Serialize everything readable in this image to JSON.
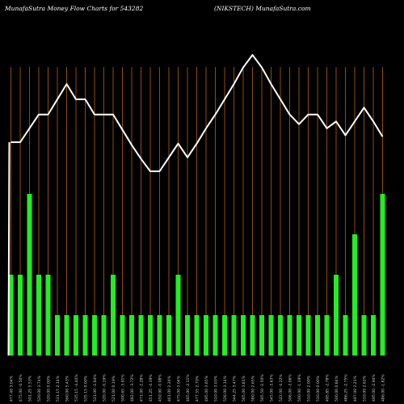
{
  "header": {
    "left": "MunafaSutra  Money Flow  Charts for 543282",
    "right": "(NIKSTECH) MunafaSutra.com"
  },
  "colors": {
    "background": "#000000",
    "gridline": "#b8600c",
    "bar": "#22ee22",
    "line": "#ffffff",
    "label": "#cccccc"
  },
  "chart_data": {
    "type": "bar",
    "title": "",
    "xlabel": "",
    "ylabel": "",
    "grid": true,
    "categories": [
      "477.40 3.04%",
      "475.00 -0.50%",
      "501.25 5.53%",
      "520.00 3.74%",
      "520.00 0.00%",
      "531.15 2.14%",
      "560.00 5.43%",
      "535.15 -4.44%",
      "535.15 0.00%",
      "521.00 -2.64%",
      "520.00 -0.19%",
      "521.00 0.19%",
      "500.65 -3.91%",
      "482.00 -3.72%",
      "471.00 -2.28%",
      "451.25 -4.19%",
      "450.90 -0.08%",
      "461.00 2.24%",
      "475.00 3.04%",
      "465.00 -2.11%",
      "477.55 2.70%",
      "495.00 3.65%",
      "510.00 3.03%",
      "526.00 3.14%",
      "544.25 3.47%",
      "565.00 3.81%",
      "580.00 2.65%",
      "565.50 -2.50%",
      "545.00 -3.63%",
      "522.00 -4.22%",
      "506.00 -3.06%",
      "500.00 -1.19%",
      "510.00 2.00%",
      "510.00 0.00%",
      "495.85 -2.78%",
      "500.00 0.84%",
      "486.25 -2.75%",
      "497.00 2.21%",
      "510.00 2.62%",
      "495.00 -2.94%",
      "486.00 -1.82%"
    ],
    "series": [
      {
        "type": "bar",
        "values": [
          2,
          2,
          4,
          2,
          2,
          1,
          1,
          1,
          1,
          1,
          1,
          2,
          1,
          1,
          1,
          1,
          1,
          1,
          2,
          1,
          1,
          1,
          1,
          1,
          1,
          1,
          1,
          1,
          1,
          1,
          1,
          1,
          1,
          1,
          1,
          2,
          1,
          3,
          1,
          1,
          4
        ]
      },
      {
        "type": "line",
        "values": [
          477,
          477,
          487,
          497,
          497,
          508,
          519,
          508,
          508,
          497,
          497,
          497,
          486,
          475,
          465,
          456,
          456,
          466,
          476,
          466,
          476,
          487,
          497,
          508,
          519,
          531,
          540,
          531,
          519,
          508,
          497,
          490,
          497,
          497,
          487,
          492,
          482,
          492,
          502,
          492,
          481
        ]
      }
    ]
  }
}
